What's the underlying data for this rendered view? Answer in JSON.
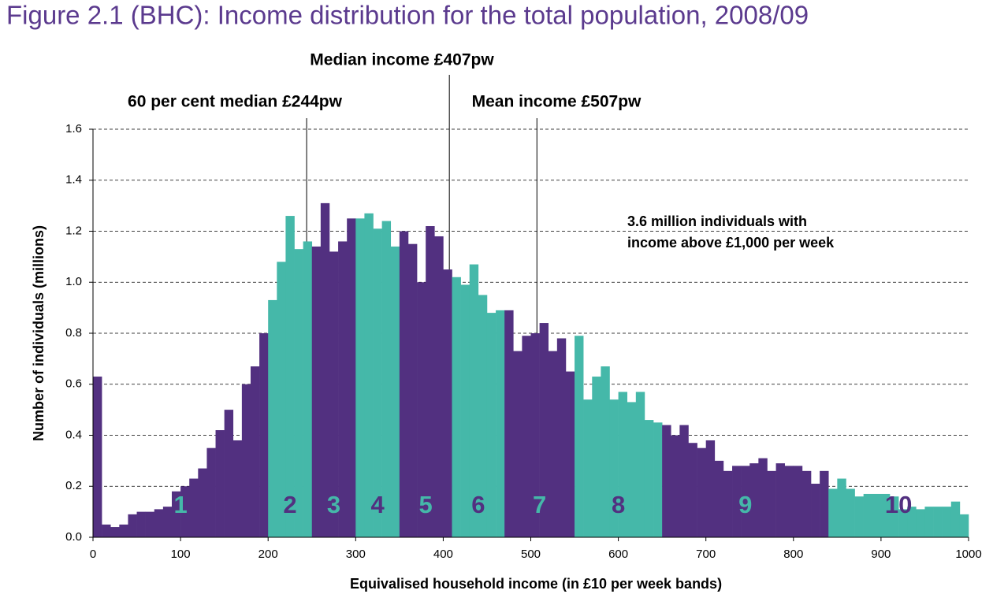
{
  "chart_data": {
    "type": "histogram",
    "title": "Figure 2.1 (BHC): Income distribution for the total population, 2008/09",
    "xlabel": "Equivalised household income (in £10 per week bands)",
    "ylabel": "Number of individuals (millions)",
    "bins": [
      0,
      10,
      20,
      30,
      40,
      50,
      60,
      70,
      80,
      90,
      100,
      110,
      120,
      130,
      140,
      150,
      160,
      170,
      180,
      190,
      200,
      210,
      220,
      230,
      240,
      250,
      260,
      270,
      280,
      290,
      300,
      310,
      320,
      330,
      340,
      350,
      360,
      370,
      380,
      390,
      400,
      410,
      420,
      430,
      440,
      450,
      460,
      470,
      480,
      490,
      500,
      510,
      520,
      530,
      540,
      550,
      560,
      570,
      580,
      590,
      600,
      610,
      620,
      630,
      640,
      650,
      660,
      670,
      680,
      690,
      700,
      710,
      720,
      730,
      740,
      750,
      760,
      770,
      780,
      790,
      800,
      810,
      820,
      830,
      840,
      850,
      860,
      870,
      880,
      890,
      900,
      910,
      920,
      930,
      940,
      950,
      960,
      970,
      980,
      990,
      1000
    ],
    "values": [
      0.63,
      0.05,
      0.04,
      0.05,
      0.09,
      0.1,
      0.1,
      0.11,
      0.12,
      0.18,
      0.2,
      0.23,
      0.27,
      0.35,
      0.42,
      0.5,
      0.38,
      0.6,
      0.67,
      0.8,
      0.93,
      1.08,
      1.26,
      1.13,
      1.16,
      1.14,
      1.31,
      1.12,
      1.16,
      1.25,
      1.25,
      1.27,
      1.21,
      1.24,
      1.14,
      1.2,
      1.15,
      1.0,
      1.22,
      1.18,
      1.05,
      1.02,
      0.99,
      1.07,
      0.95,
      0.88,
      0.89,
      0.89,
      0.73,
      0.79,
      0.8,
      0.84,
      0.73,
      0.78,
      0.65,
      0.79,
      0.54,
      0.63,
      0.67,
      0.54,
      0.57,
      0.53,
      0.57,
      0.46,
      0.45,
      0.44,
      0.4,
      0.44,
      0.37,
      0.35,
      0.38,
      0.3,
      0.26,
      0.28,
      0.28,
      0.29,
      0.31,
      0.26,
      0.29,
      0.28,
      0.28,
      0.26,
      0.21,
      0.26,
      0.19,
      0.23,
      0.19,
      0.16,
      0.17,
      0.17,
      0.17,
      0.16,
      0.11,
      0.12,
      0.11,
      0.12,
      0.12,
      0.12,
      0.14,
      0.09
    ],
    "colors": [
      "#523080",
      "#523080",
      "#523080",
      "#523080",
      "#523080",
      "#523080",
      "#523080",
      "#523080",
      "#523080",
      "#523080",
      "#523080",
      "#523080",
      "#523080",
      "#523080",
      "#523080",
      "#523080",
      "#523080",
      "#523080",
      "#523080",
      "#523080",
      "#45b8a9",
      "#45b8a9",
      "#45b8a9",
      "#45b8a9",
      "#45b8a9",
      "#523080",
      "#523080",
      "#523080",
      "#523080",
      "#523080",
      "#45b8a9",
      "#45b8a9",
      "#45b8a9",
      "#45b8a9",
      "#45b8a9",
      "#523080",
      "#523080",
      "#523080",
      "#523080",
      "#523080",
      "#523080",
      "#45b8a9",
      "#45b8a9",
      "#45b8a9",
      "#45b8a9",
      "#45b8a9",
      "#45b8a9",
      "#523080",
      "#523080",
      "#523080",
      "#523080",
      "#523080",
      "#523080",
      "#523080",
      "#523080",
      "#45b8a9",
      "#45b8a9",
      "#45b8a9",
      "#45b8a9",
      "#45b8a9",
      "#45b8a9",
      "#45b8a9",
      "#45b8a9",
      "#45b8a9",
      "#45b8a9",
      "#523080",
      "#523080",
      "#523080",
      "#523080",
      "#523080",
      "#523080",
      "#523080",
      "#523080",
      "#523080",
      "#523080",
      "#523080",
      "#523080",
      "#523080",
      "#523080",
      "#523080",
      "#523080",
      "#523080",
      "#523080",
      "#523080",
      "#45b8a9",
      "#45b8a9",
      "#45b8a9",
      "#45b8a9",
      "#45b8a9",
      "#45b8a9",
      "#45b8a9",
      "#45b8a9",
      "#45b8a9",
      "#45b8a9",
      "#45b8a9",
      "#45b8a9",
      "#45b8a9",
      "#45b8a9",
      "#45b8a9",
      "#45b8a9"
    ],
    "decile_labels": [
      "1",
      "2",
      "3",
      "4",
      "5",
      "6",
      "7",
      "8",
      "9",
      "10"
    ],
    "annotations": [
      {
        "text": "Median income £407pw",
        "x": 407
      },
      {
        "text": "60 per cent median £244pw",
        "x": 244
      },
      {
        "text": "Mean income £507pw",
        "x": 507
      }
    ],
    "note": [
      "3.6 million individuals with",
      "income above £1,000 per week"
    ],
    "xlim": [
      0,
      1000
    ],
    "xticks": [
      0,
      100,
      200,
      300,
      400,
      500,
      600,
      700,
      800,
      900,
      1000
    ],
    "ylim": [
      0,
      1.6
    ],
    "yticks": [
      {
        "value": 0,
        "label": "0.0"
      },
      0.2,
      0.4,
      0.6,
      0.8,
      {
        "value": 1,
        "label": "1.0"
      },
      1.2,
      1.4,
      1.6
    ],
    "grid": true
  }
}
